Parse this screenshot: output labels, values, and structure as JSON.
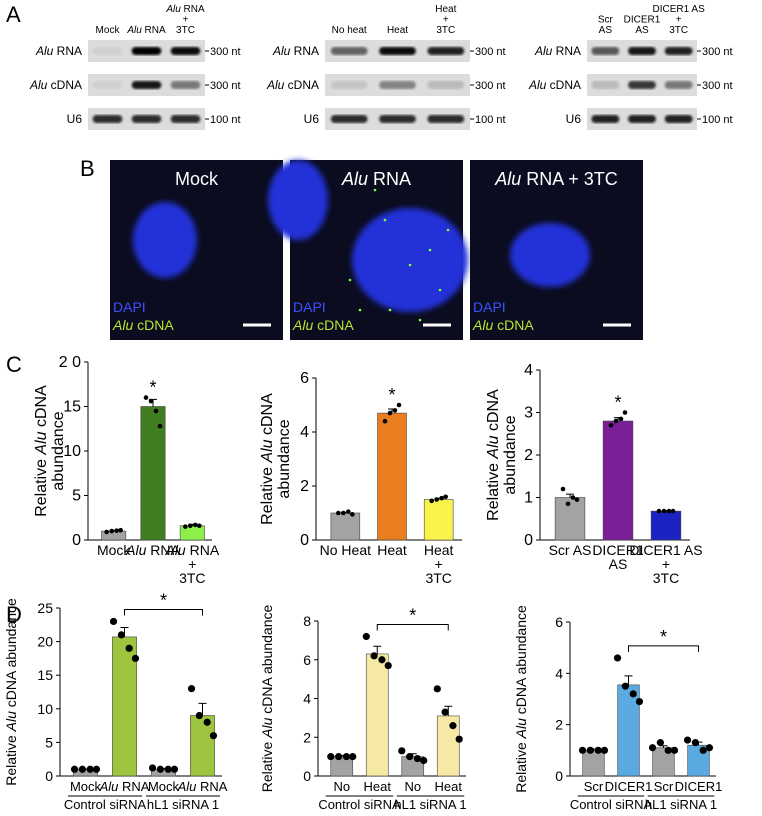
{
  "panel_labels": [
    "A",
    "B",
    "C",
    "D"
  ],
  "blots": [
    {
      "columns": [
        "Mock",
        "Alu RNA",
        "Alu RNA\n+\n3TC"
      ],
      "rows": [
        "Alu RNA",
        "Alu cDNA",
        "U6"
      ],
      "markers": [
        "300 nt",
        "300 nt",
        "100 nt"
      ]
    },
    {
      "columns": [
        "No heat",
        "Heat",
        "Heat\n+\n3TC"
      ],
      "rows": [
        "Alu RNA",
        "Alu cDNA",
        "U6"
      ],
      "markers": [
        "300 nt",
        "300 nt",
        "100 nt"
      ]
    },
    {
      "columns": [
        "Scr\nAS",
        "DICER1\nAS",
        "DICER1 AS\n+\n3TC"
      ],
      "rows": [
        "Alu RNA",
        "Alu cDNA",
        "U6"
      ],
      "markers": [
        "300 nt",
        "300 nt",
        "100 nt"
      ]
    }
  ],
  "micrographs": [
    {
      "title": "Mock",
      "labels": [
        "DAPI",
        "Alu cDNA"
      ]
    },
    {
      "title": "Alu RNA",
      "labels": [
        "DAPI",
        "Alu cDNA"
      ]
    },
    {
      "title": "Alu RNA + 3TC",
      "labels": [
        "DAPI",
        "Alu cDNA"
      ]
    }
  ],
  "chart_data": [
    {
      "type": "bar",
      "y_label": "Relative Alu cDNA\nabundance",
      "categories": [
        "Mock",
        "Alu RNA",
        "Alu RNA\n+\n3TC"
      ],
      "values": [
        1,
        15,
        1.6
      ],
      "errors": [
        0.1,
        0.8,
        0.15
      ],
      "colors": [
        "#a3a3a3",
        "#3f7d1f",
        "#8df04a"
      ],
      "points": [
        [
          0.9,
          1,
          1.05,
          1.1
        ],
        [
          16,
          15.6,
          14.5,
          12.8
        ],
        [
          1.5,
          1.6,
          1.7,
          1.6
        ]
      ],
      "ylim": [
        0,
        20
      ],
      "yticks": [
        0,
        5,
        10,
        15,
        {
          "value": 20,
          "label": "2 0"
        }
      ],
      "annotation": "*"
    },
    {
      "type": "bar",
      "y_label": "Relative Alu cDNA\nabundance",
      "categories": [
        "No Heat",
        "Heat",
        "Heat\n+\n3TC"
      ],
      "values": [
        1,
        4.7,
        1.5
      ],
      "errors": [
        0.03,
        0.15,
        0.05
      ],
      "colors": [
        "#a3a3a3",
        "#ea7d1e",
        "#f9f34c"
      ],
      "points": [
        [
          1,
          1,
          1.05,
          0.95
        ],
        [
          4.4,
          4.7,
          4.8,
          5.0
        ],
        [
          1.45,
          1.5,
          1.55,
          1.6
        ]
      ],
      "ylim": [
        0,
        6
      ],
      "yticks": [
        0,
        2,
        4,
        6
      ],
      "annotation": "*"
    },
    {
      "type": "bar",
      "y_label": "Relative Alu cDNA\nabundance",
      "categories": [
        "Scr AS",
        "DICER1\nAS",
        "DICER1 AS\n+\n3TC"
      ],
      "values": [
        1,
        2.8,
        0.68
      ],
      "errors": [
        0.08,
        0.08,
        0.01
      ],
      "colors": [
        "#a3a3a3",
        "#7a1f98",
        "#1a23c2"
      ],
      "points": [
        [
          1.2,
          0.85,
          1.0,
          0.95
        ],
        [
          2.7,
          2.8,
          2.85,
          3.0
        ],
        [
          0.68,
          0.68,
          0.68,
          0.68
        ]
      ],
      "ylim": [
        0,
        4
      ],
      "yticks": [
        0,
        1,
        2,
        3,
        4
      ],
      "annotation": "*"
    },
    {
      "type": "bar",
      "y_label": "Relative Alu cDNA abundance",
      "categories": [
        "Mock",
        "Alu RNA",
        "Mock",
        "Alu RNA"
      ],
      "groups": [
        "Control siRNA",
        "hL1 siRNA 1"
      ],
      "values": [
        1,
        20.7,
        1,
        9
      ],
      "errors": [
        0.05,
        1.4,
        0.1,
        1.8
      ],
      "colors": [
        "#a3a3a3",
        "#9dc43f",
        "#a3a3a3",
        "#9dc43f"
      ],
      "points": [
        [
          1,
          1,
          1,
          1
        ],
        [
          23,
          21,
          19,
          17.5
        ],
        [
          1.2,
          1,
          1,
          1
        ],
        [
          13,
          9,
          8,
          6
        ]
      ],
      "ylim": [
        0,
        25
      ],
      "yticks": [
        0,
        5,
        10,
        15,
        20,
        25
      ],
      "annotation": "*"
    },
    {
      "type": "bar",
      "y_label": "Relative Alu cDNA abundance",
      "categories": [
        "No",
        "Heat",
        "No",
        "Heat"
      ],
      "groups": [
        "Control siRNA",
        "hL1 siRNA 1"
      ],
      "values": [
        1,
        6.3,
        1,
        3.1
      ],
      "errors": [
        0.05,
        0.4,
        0.15,
        0.5
      ],
      "colors": [
        "#a3a3a3",
        "#f6e9a3",
        "#a3a3a3",
        "#f6e9a3"
      ],
      "points": [
        [
          1,
          1,
          1,
          1
        ],
        [
          7.2,
          6.2,
          6,
          5.7
        ],
        [
          1.3,
          1,
          0.9,
          0.8
        ],
        [
          4.5,
          3.3,
          2.6,
          1.9
        ]
      ],
      "ylim": [
        0,
        8
      ],
      "yticks": [
        0,
        2,
        4,
        6,
        8
      ],
      "annotation": "*"
    },
    {
      "type": "bar",
      "y_label": "Relative Alu cDNA abundance",
      "categories": [
        "Scr",
        "DICER1",
        "Scr",
        "DICER1"
      ],
      "groups": [
        "Control siRNA",
        "hL1 siRNA 1"
      ],
      "values": [
        1,
        3.55,
        1.1,
        1.2
      ],
      "errors": [
        0.05,
        0.35,
        0.08,
        0.12
      ],
      "colors": [
        "#a3a3a3",
        "#5ba9e1",
        "#a3a3a3",
        "#5ba9e1"
      ],
      "points": [
        [
          1,
          1,
          1,
          1
        ],
        [
          4.6,
          3.5,
          3.2,
          2.9
        ],
        [
          1.1,
          1.3,
          1.0,
          1.0
        ],
        [
          1.4,
          1.3,
          1.0,
          1.1
        ]
      ],
      "ylim": [
        0,
        6
      ],
      "yticks": [
        0,
        2,
        4,
        6
      ],
      "annotation": "*"
    }
  ]
}
